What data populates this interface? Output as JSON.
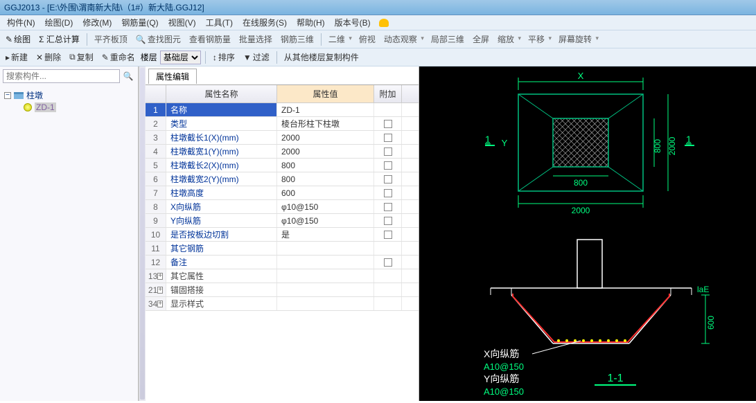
{
  "window": {
    "title": "GGJ2013 - [E:\\外围\\渭南新大陆\\（1#）新大陆.GGJ12]"
  },
  "menu": {
    "items": [
      "构件(N)",
      "绘图(D)",
      "修改(M)",
      "钢筋量(Q)",
      "视图(V)",
      "工具(T)",
      "在线服务(S)",
      "帮助(H)",
      "版本号(B)"
    ]
  },
  "toolbar1": {
    "draw": "绘图",
    "sigma": "Σ 汇总计算",
    "level": "平齐板顶",
    "find": "查找图元",
    "steel": "查看钢筋量",
    "batch": "批量选择",
    "threed": "钢筋三维",
    "two": "二维",
    "top": "俯视",
    "dyn": "动态观察",
    "local": "局部三维",
    "full": "全屏",
    "zoom": "缩放",
    "pan": "平移",
    "rot": "屏幕旋转"
  },
  "toolbar2": {
    "new": "新建",
    "del": "删除",
    "copy": "复制",
    "rename": "重命名",
    "floor": "楼层",
    "base": "基础层",
    "sort": "排序",
    "filter": "过滤",
    "copyfrom": "从其他楼层复制构件"
  },
  "search": {
    "placeholder": "搜索构件..."
  },
  "tree": {
    "root": "柱墩",
    "child": "ZD-1"
  },
  "props": {
    "tab": "属性编辑",
    "headers": {
      "name": "属性名称",
      "val": "属性值",
      "ext": "附加"
    },
    "rows": [
      {
        "n": "1",
        "name": "名称",
        "val": "ZD-1",
        "chk": false,
        "sel": true
      },
      {
        "n": "2",
        "name": "类型",
        "val": "棱台形柱下柱墩",
        "chk": true
      },
      {
        "n": "3",
        "name": "柱墩截长1(X)(mm)",
        "val": "2000",
        "chk": true
      },
      {
        "n": "4",
        "name": "柱墩截宽1(Y)(mm)",
        "val": "2000",
        "chk": true
      },
      {
        "n": "5",
        "name": "柱墩截长2(X)(mm)",
        "val": "800",
        "chk": true
      },
      {
        "n": "6",
        "name": "柱墩截宽2(Y)(mm)",
        "val": "800",
        "chk": true
      },
      {
        "n": "7",
        "name": "柱墩高度",
        "val": "600",
        "chk": true
      },
      {
        "n": "8",
        "name": "X向纵筋",
        "val": "φ10@150",
        "chk": true
      },
      {
        "n": "9",
        "name": "Y向纵筋",
        "val": "φ10@150",
        "chk": true
      },
      {
        "n": "10",
        "name": "是否按板边切割",
        "val": "是",
        "chk": true
      },
      {
        "n": "11",
        "name": "其它钢筋",
        "val": "",
        "chk": false
      },
      {
        "n": "12",
        "name": "备注",
        "val": "",
        "chk": true
      }
    ],
    "groups": [
      {
        "n": "13",
        "name": "其它属性"
      },
      {
        "n": "21",
        "name": "锚固搭接"
      },
      {
        "n": "34",
        "name": "显示样式"
      }
    ]
  },
  "diagram": {
    "plan": {
      "outer_w": "2000",
      "outer_h": "2000",
      "inner_w": "800",
      "inner_h": "800",
      "x_label": "X",
      "y_label": "Y",
      "cut_mark": "1",
      "cut_mark2": "1"
    },
    "section": {
      "height": "600",
      "label1": "X向纵筋",
      "label1v": "A10@150",
      "label2": "Y向纵筋",
      "label2v": "A10@150",
      "lae": "laE",
      "section_label": "1-1"
    },
    "colors": {
      "outline": "#00c080",
      "dim": "#00ff80",
      "white": "#ffffff",
      "yellow": "#ffff00",
      "red": "#ff3030",
      "hatch": "#d0d0d0"
    }
  }
}
